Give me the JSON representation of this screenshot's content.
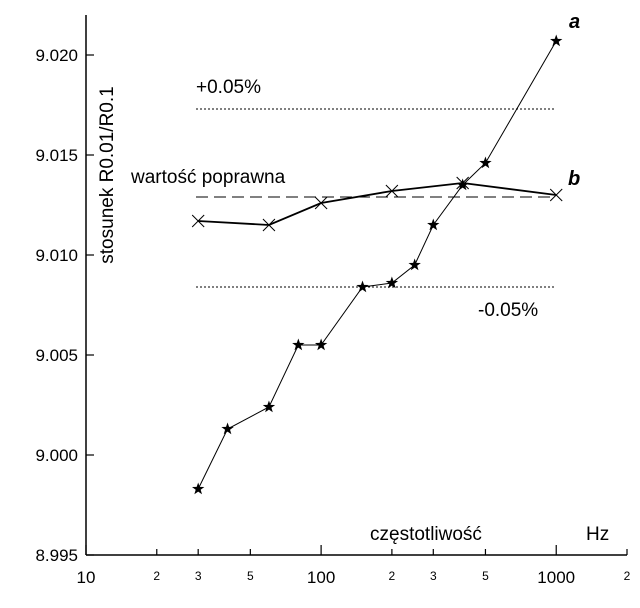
{
  "chart_data": {
    "type": "line",
    "xscale": "log",
    "xlim": [
      10,
      2000
    ],
    "ylim": [
      8.995,
      9.022
    ],
    "xlabel": "częstotliwość",
    "xunit": "Hz",
    "ylabel": "stosunek  R0.01/R0.1",
    "x_ticks": [
      {
        "value": 10,
        "label": "10",
        "major": true
      },
      {
        "value": 20,
        "label": "2",
        "major": false
      },
      {
        "value": 30,
        "label": "3",
        "major": false
      },
      {
        "value": 50,
        "label": "5",
        "major": false
      },
      {
        "value": 100,
        "label": "100",
        "major": true
      },
      {
        "value": 200,
        "label": "2",
        "major": false
      },
      {
        "value": 300,
        "label": "3",
        "major": false
      },
      {
        "value": 500,
        "label": "5",
        "major": false
      },
      {
        "value": 1000,
        "label": "1000",
        "major": true
      },
      {
        "value": 2000,
        "label": "2",
        "major": false
      }
    ],
    "y_ticks": [
      {
        "value": 8.995,
        "label": "8.995"
      },
      {
        "value": 9.0,
        "label": "9.000"
      },
      {
        "value": 9.005,
        "label": "9.005"
      },
      {
        "value": 9.01,
        "label": "9.010"
      },
      {
        "value": 9.015,
        "label": "9.015"
      },
      {
        "value": 9.02,
        "label": "9.020"
      }
    ],
    "series": [
      {
        "name": "a",
        "marker": "star",
        "x": [
          30,
          40,
          60,
          80,
          100,
          150,
          200,
          250,
          300,
          400,
          500,
          1000
        ],
        "y": [
          8.9983,
          9.0013,
          9.0024,
          9.0055,
          9.0055,
          9.0084,
          9.0086,
          9.0095,
          9.0115,
          9.0135,
          9.0146,
          9.0207
        ]
      },
      {
        "name": "b",
        "marker": "x",
        "x": [
          30,
          60,
          100,
          200,
          400,
          1000
        ],
        "y": [
          9.0117,
          9.0115,
          9.0126,
          9.0132,
          9.0136,
          9.013
        ]
      }
    ],
    "reference_lines": [
      {
        "id": "upper",
        "y": 9.0173,
        "style": "dotted",
        "label": "+0.05%"
      },
      {
        "id": "correct",
        "y": 9.0129,
        "style": "dashed",
        "label": "wartość poprawna"
      },
      {
        "id": "lower",
        "y": 9.0084,
        "style": "dotted",
        "label": "-0.05%"
      }
    ],
    "grid": false,
    "legend": "none"
  }
}
